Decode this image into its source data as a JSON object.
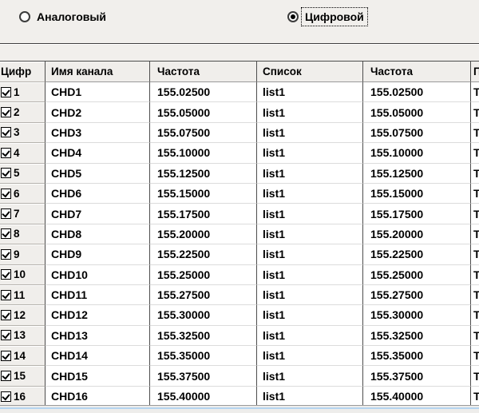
{
  "radios": {
    "analog": {
      "label": "Аналоговый",
      "selected": false
    },
    "digital": {
      "label": "Цифровой",
      "selected": true
    }
  },
  "table": {
    "headers": {
      "num": "Цифр",
      "name": "Имя канала",
      "freq_rx": "Частота",
      "list": "Список",
      "freq_tx": "Частота",
      "partial": "П"
    },
    "rows": [
      {
        "checked": true,
        "num": "1",
        "name": "CHD1",
        "freq_rx": "155.02500",
        "list": "list1",
        "freq_tx": "155.02500",
        "partial": "Т"
      },
      {
        "checked": true,
        "num": "2",
        "name": "CHD2",
        "freq_rx": "155.05000",
        "list": "list1",
        "freq_tx": "155.05000",
        "partial": "Т"
      },
      {
        "checked": true,
        "num": "3",
        "name": "CHD3",
        "freq_rx": "155.07500",
        "list": "list1",
        "freq_tx": "155.07500",
        "partial": "Т"
      },
      {
        "checked": true,
        "num": "4",
        "name": "CHD4",
        "freq_rx": "155.10000",
        "list": "list1",
        "freq_tx": "155.10000",
        "partial": "Т"
      },
      {
        "checked": true,
        "num": "5",
        "name": "CHD5",
        "freq_rx": "155.12500",
        "list": "list1",
        "freq_tx": "155.12500",
        "partial": "Т"
      },
      {
        "checked": true,
        "num": "6",
        "name": "CHD6",
        "freq_rx": "155.15000",
        "list": "list1",
        "freq_tx": "155.15000",
        "partial": "Т"
      },
      {
        "checked": true,
        "num": "7",
        "name": "CHD7",
        "freq_rx": "155.17500",
        "list": "list1",
        "freq_tx": "155.17500",
        "partial": "Т"
      },
      {
        "checked": true,
        "num": "8",
        "name": "CHD8",
        "freq_rx": "155.20000",
        "list": "list1",
        "freq_tx": "155.20000",
        "partial": "Т"
      },
      {
        "checked": true,
        "num": "9",
        "name": "CHD9",
        "freq_rx": "155.22500",
        "list": "list1",
        "freq_tx": "155.22500",
        "partial": "Т"
      },
      {
        "checked": true,
        "num": "10",
        "name": "CHD10",
        "freq_rx": "155.25000",
        "list": "list1",
        "freq_tx": "155.25000",
        "partial": "Т"
      },
      {
        "checked": true,
        "num": "11",
        "name": "CHD11",
        "freq_rx": "155.27500",
        "list": "list1",
        "freq_tx": "155.27500",
        "partial": "Т"
      },
      {
        "checked": true,
        "num": "12",
        "name": "CHD12",
        "freq_rx": "155.30000",
        "list": "list1",
        "freq_tx": "155.30000",
        "partial": "Т"
      },
      {
        "checked": true,
        "num": "13",
        "name": "CHD13",
        "freq_rx": "155.32500",
        "list": "list1",
        "freq_tx": "155.32500",
        "partial": "Т"
      },
      {
        "checked": true,
        "num": "14",
        "name": "CHD14",
        "freq_rx": "155.35000",
        "list": "list1",
        "freq_tx": "155.35000",
        "partial": "Т"
      },
      {
        "checked": true,
        "num": "15",
        "name": "CHD15",
        "freq_rx": "155.37500",
        "list": "list1",
        "freq_tx": "155.37500",
        "partial": "Т"
      },
      {
        "checked": true,
        "num": "16",
        "name": "CHD16",
        "freq_rx": "155.40000",
        "list": "list1",
        "freq_tx": "155.40000",
        "partial": "Т"
      }
    ]
  },
  "colors": {
    "bottom_line_blue": "#b5d5f0",
    "grid_dark": "#4d4d4d",
    "grid_light": "#dcdcdc"
  }
}
